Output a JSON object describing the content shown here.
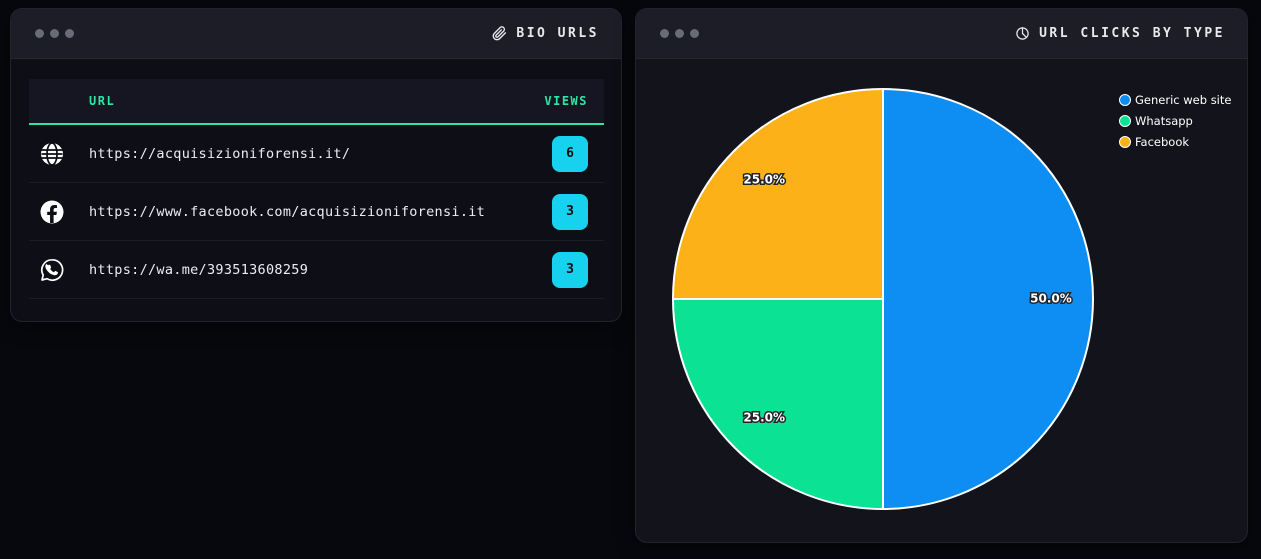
{
  "left_panel": {
    "title": "BIO URLS",
    "columns": {
      "url": "URL",
      "views": "VIEWS"
    },
    "rows": [
      {
        "icon": "globe",
        "url": "https://acquisizioniforensi.it/",
        "views": "6"
      },
      {
        "icon": "facebook",
        "url": "https://www.facebook.com/acquisizioniforensi.it",
        "views": "3"
      },
      {
        "icon": "whatsapp",
        "url": "https://wa.me/393513608259",
        "views": "3"
      }
    ],
    "accent_green": "#2ee6a3",
    "badge_color": "#16d2ee"
  },
  "right_panel": {
    "title": "URL CLICKS BY TYPE"
  },
  "chart_data": {
    "type": "pie",
    "title": "URL CLICKS BY TYPE",
    "labels": [
      "Generic web site",
      "Whatsapp",
      "Facebook"
    ],
    "values": [
      50.0,
      25.0,
      25.0
    ],
    "value_labels": [
      "50.0%",
      "25.0%",
      "25.0%"
    ],
    "colors": [
      "#0e8ef2",
      "#0ce293",
      "#fbb117"
    ],
    "counts_from_views": [
      6,
      3,
      3
    ],
    "start_angle": 90,
    "clockwise": true,
    "slice_edge_color": "#ffffff",
    "label_distance": 0.8,
    "legend_position": "upper right"
  }
}
